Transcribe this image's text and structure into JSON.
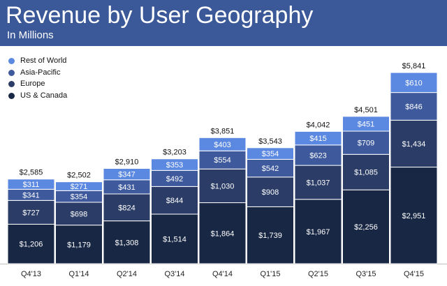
{
  "chart_data": {
    "type": "bar",
    "stacked": true,
    "title": "Revenue by User Geography",
    "subtitle": "In Millions",
    "categories": [
      "Q4'13",
      "Q1'14",
      "Q2'14",
      "Q3'14",
      "Q4'14",
      "Q1'15",
      "Q2'15",
      "Q3'15",
      "Q4'15"
    ],
    "series": [
      {
        "name": "US & Canada",
        "color": "#182744",
        "labels": [
          "$1,206",
          "$1,179",
          "$1,308",
          "$1,514",
          "$1,864",
          "$1,739",
          "$1,967",
          "$2,256",
          "$2,951"
        ],
        "values": [
          1206,
          1179,
          1308,
          1514,
          1864,
          1739,
          1967,
          2256,
          2951
        ]
      },
      {
        "name": "Europe",
        "color": "#2b3d66",
        "labels": [
          "$727",
          "$698",
          "$824",
          "$844",
          "$1,030",
          "$908",
          "$1,037",
          "$1,085",
          "$1,434"
        ],
        "values": [
          727,
          698,
          824,
          844,
          1030,
          908,
          1037,
          1085,
          1434
        ]
      },
      {
        "name": "Asia-Pacific",
        "color": "#3e5a9c",
        "labels": [
          "$341",
          "$354",
          "$431",
          "$492",
          "$554",
          "$542",
          "$623",
          "$709",
          "$846"
        ],
        "values": [
          341,
          354,
          431,
          492,
          554,
          542,
          623,
          709,
          846
        ]
      },
      {
        "name": "Rest of World",
        "color": "#5b88e0",
        "labels": [
          "$311",
          "$271",
          "$347",
          "$353",
          "$403",
          "$354",
          "$415",
          "$451",
          "$610"
        ],
        "values": [
          311,
          271,
          347,
          353,
          403,
          354,
          415,
          451,
          610
        ]
      }
    ],
    "totals": [
      "$2,585",
      "$2,502",
      "$2,910",
      "$3,203",
      "$3,851",
      "$3,543",
      "$4,042",
      "$4,501",
      "$5,841"
    ],
    "legend_order": [
      "Rest of World",
      "Asia-Pacific",
      "Europe",
      "US & Canada"
    ],
    "legend_position": "top-left",
    "grid": false,
    "ylim": [
      0,
      5841
    ]
  }
}
